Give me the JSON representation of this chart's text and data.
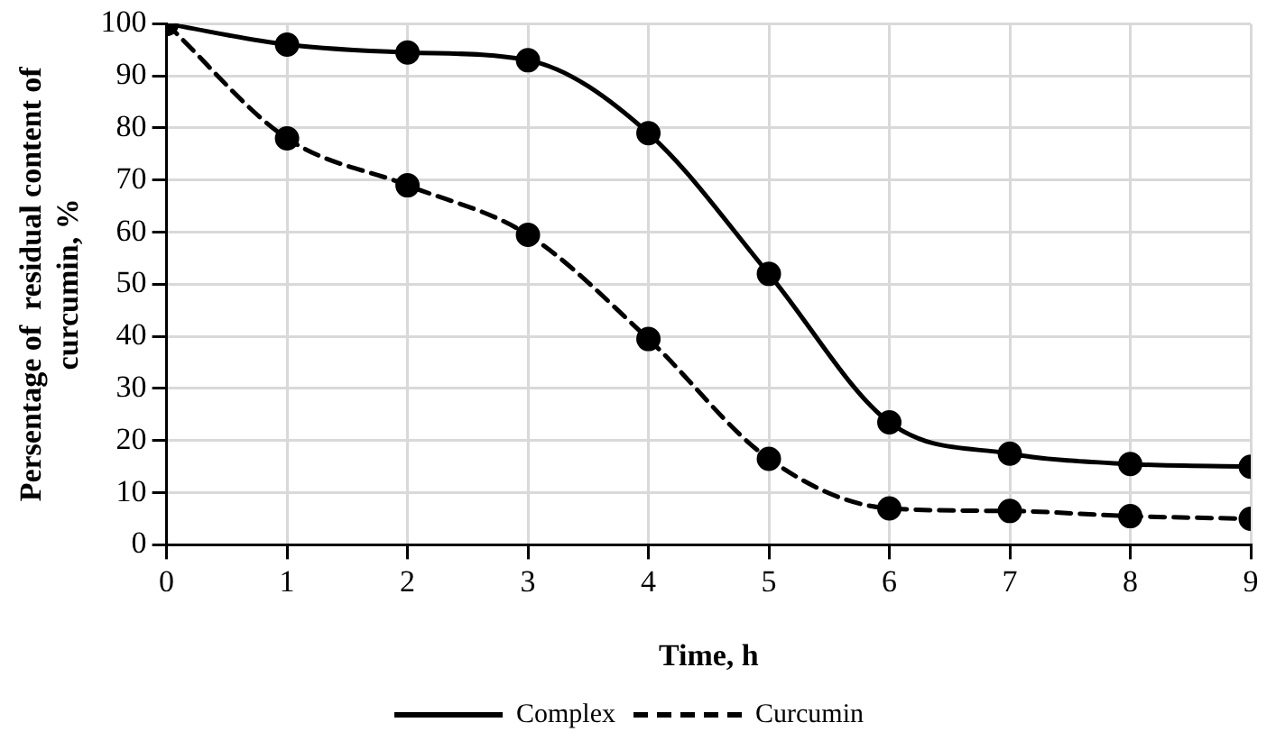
{
  "chart_data": {
    "type": "line",
    "xlabel": "Time, h",
    "ylabel": "Persentage of  residual content of curcumin, %",
    "x": [
      0,
      1,
      2,
      3,
      4,
      5,
      6,
      7,
      8,
      9
    ],
    "series": [
      {
        "name": "Complex",
        "color": "#000000",
        "values": [
          100,
          96,
          94.5,
          93,
          79,
          52,
          23.5,
          17.5,
          15.5,
          15
        ],
        "line_style": "solid"
      },
      {
        "name": "Curcumin",
        "color": "#000000",
        "values": [
          100,
          78,
          69,
          59.5,
          39.5,
          16.5,
          7,
          6.5,
          5.5,
          5
        ],
        "line_style": "dashed"
      }
    ],
    "xlim": [
      0,
      9
    ],
    "xticks": [
      0,
      1,
      2,
      3,
      4,
      5,
      6,
      7,
      8,
      9
    ],
    "ylim": [
      0,
      100
    ],
    "yticks": [
      0,
      10,
      20,
      30,
      40,
      50,
      60,
      70,
      80,
      90,
      100
    ],
    "grid": true,
    "legend": "bottom",
    "marker": "circle"
  }
}
